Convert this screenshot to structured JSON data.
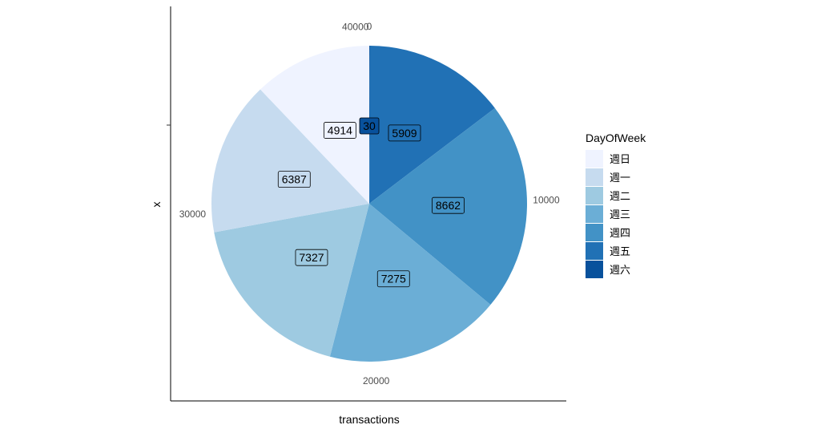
{
  "chart_data": {
    "type": "pie",
    "xlabel": "transactions",
    "ylabel": "x",
    "legend_title": "DayOfWeek",
    "legend_position": "right",
    "grid": false,
    "direction": "clockwise",
    "theta_ticks": [
      0,
      10000,
      20000,
      30000,
      40000
    ],
    "theta_tick_labels": [
      "0",
      "10000",
      "20000",
      "30000",
      "40000"
    ],
    "slices": [
      {
        "name": "週六",
        "value": 30,
        "color": "#08519c"
      },
      {
        "name": "週五",
        "value": 5909,
        "color": "#2171b5"
      },
      {
        "name": "週四",
        "value": 8662,
        "color": "#4292c6"
      },
      {
        "name": "週三",
        "value": 7275,
        "color": "#6baed6"
      },
      {
        "name": "週二",
        "value": 7327,
        "color": "#9ecae1"
      },
      {
        "name": "週一",
        "value": 6387,
        "color": "#c6dbef"
      },
      {
        "name": "週日",
        "value": 4914,
        "color": "#eff3ff"
      }
    ],
    "legend_order": [
      "週日",
      "週一",
      "週二",
      "週三",
      "週四",
      "週五",
      "週六"
    ]
  }
}
